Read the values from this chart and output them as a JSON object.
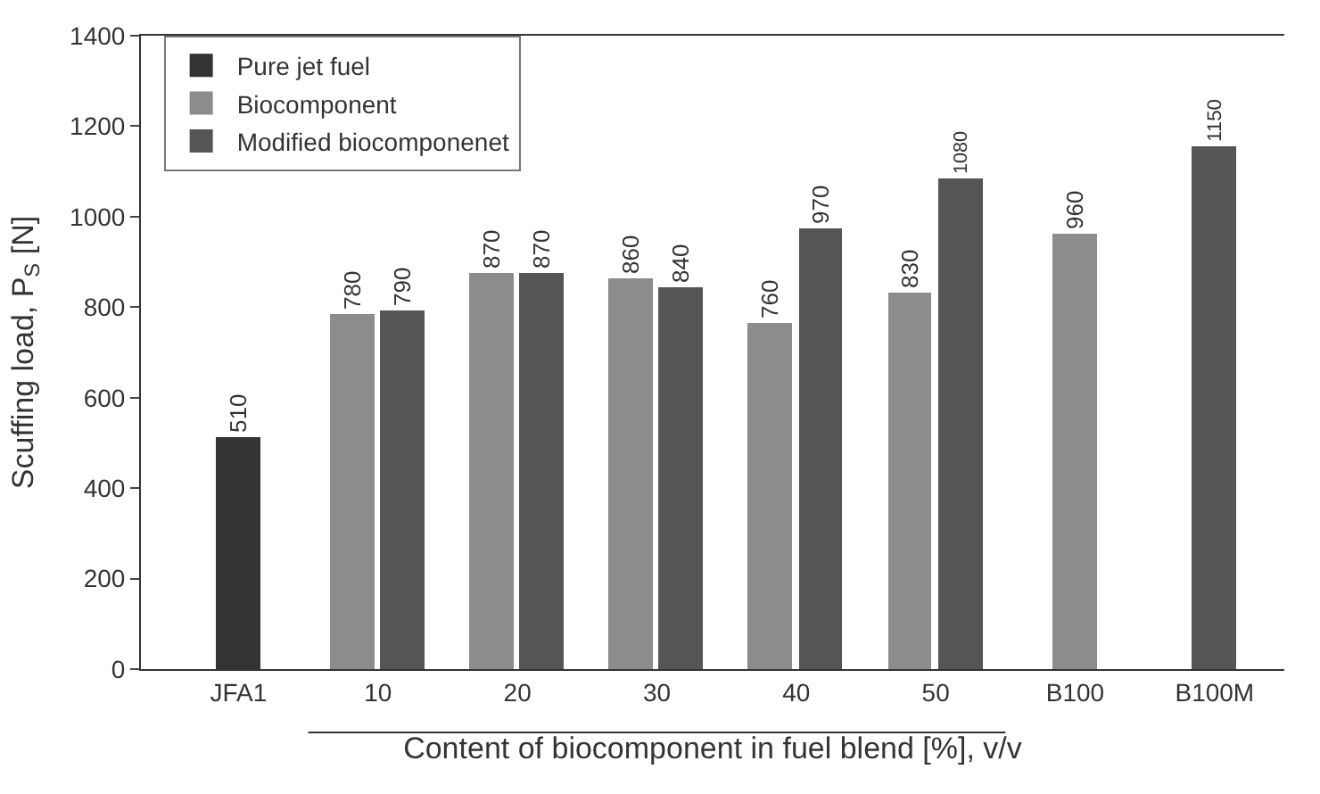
{
  "chart_data": {
    "type": "bar",
    "xlabel": "Content of biocomponent in fuel blend [%], v/v",
    "ylabel": "Scuffing load, P$_{S}$ [N]",
    "categories": [
      "JFA1",
      "10",
      "20",
      "30",
      "40",
      "50",
      "B100",
      "B100M"
    ],
    "series": [
      {
        "name": "Pure jet fuel",
        "color": "#333333",
        "values": [
          510,
          null,
          null,
          null,
          null,
          null,
          null,
          null
        ]
      },
      {
        "name": "Biocomponent",
        "color": "#8c8c8c",
        "values": [
          null,
          780,
          870,
          860,
          760,
          830,
          960,
          null
        ]
      },
      {
        "name": "Modified biocomponenet",
        "color": "#555555",
        "values": [
          null,
          790,
          870,
          840,
          970,
          1080,
          null,
          1150
        ]
      }
    ],
    "ylim": [
      0,
      1400
    ],
    "yticks": [
      0,
      200,
      400,
      600,
      800,
      1000,
      1200,
      1400
    ],
    "data_labels": true,
    "legend": "top left"
  }
}
